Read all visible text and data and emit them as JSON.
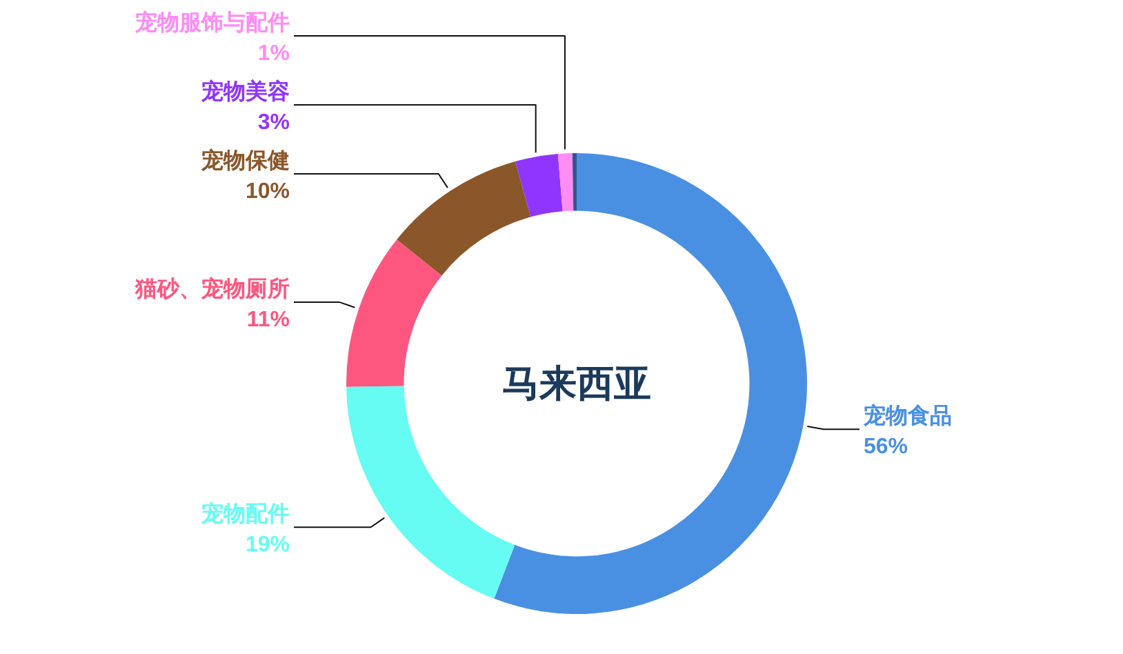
{
  "chart_data": {
    "type": "donut",
    "title": "马来西亚",
    "categories": [
      "宠物食品",
      "宠物配件",
      "猫砂、宠物厕所",
      "宠物保健",
      "宠物美容",
      "宠物服饰与配件",
      null
    ],
    "values": [
      56,
      19,
      11,
      10,
      3,
      1,
      0.3
    ],
    "value_labels": [
      "56%",
      "19%",
      "11%",
      "10%",
      "3%",
      "1%",
      null
    ],
    "colors": [
      "#4a90e2",
      "#66fcf3",
      "#fd5780",
      "#8b572a",
      "#9035fe",
      "#fe8cf5",
      "#30578a"
    ]
  }
}
